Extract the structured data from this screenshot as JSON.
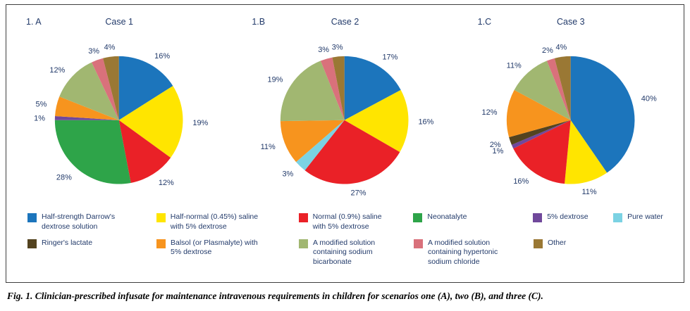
{
  "label_color": "#223A6A",
  "figure": {
    "caption": "Fig. 1. Clinician-prescribed infusate for maintenance intravenous requirements in children for scenarios one (A), two (B), and three (C)."
  },
  "chart_data": [
    {
      "type": "pie",
      "panel_label": "1. A",
      "title": "Case 1",
      "slices": [
        {
          "label": "Half-strength Darrow's dextrose solution",
          "value": 16,
          "color": "#1C75BC"
        },
        {
          "label": "Half-normal (0.45%) saline with 5% dextrose",
          "value": 19,
          "color": "#FFE500"
        },
        {
          "label": "Normal (0.9%) saline with 5% dextrose",
          "value": 12,
          "color": "#EA2127"
        },
        {
          "label": "Neonatalyte",
          "value": 28,
          "color": "#2EA449"
        },
        {
          "label": "5% dextrose",
          "value": 1,
          "color": "#70489B"
        },
        {
          "label": "Balsol (or Plasmalyte) with 5% dextrose",
          "value": 5,
          "color": "#F7941E"
        },
        {
          "label": "A modified solution containing sodium bicarbonate",
          "value": 12,
          "color": "#A1B771"
        },
        {
          "label": "A modified solution containing hypertonic sodium chloride",
          "value": 3,
          "color": "#D9717B"
        },
        {
          "label": "Other",
          "value": 4,
          "color": "#9A7834"
        }
      ]
    },
    {
      "type": "pie",
      "panel_label": "1.B",
      "title": "Case 2",
      "slices": [
        {
          "label": "Half-strength Darrow's dextrose solution",
          "value": 17,
          "color": "#1C75BC"
        },
        {
          "label": "Half-normal (0.45%) saline with 5% dextrose",
          "value": 16,
          "color": "#FFE500"
        },
        {
          "label": "Normal (0.9%) saline with 5% dextrose",
          "value": 27,
          "color": "#EA2127"
        },
        {
          "label": "Pure water",
          "value": 3,
          "color": "#7BD2E3"
        },
        {
          "label": "Balsol (or Plasmalyte) with 5% dextrose",
          "value": 11,
          "color": "#F7941E"
        },
        {
          "label": "A modified solution containing sodium bicarbonate",
          "value": 19,
          "color": "#A1B771"
        },
        {
          "label": "A modified solution containing hypertonic sodium chloride",
          "value": 3,
          "color": "#D9717B"
        },
        {
          "label": "Other",
          "value": 3,
          "color": "#9A7834"
        }
      ]
    },
    {
      "type": "pie",
      "panel_label": "1.C",
      "title": "Case 3",
      "slices": [
        {
          "label": "Half-strength Darrow's dextrose solution",
          "value": 40,
          "color": "#1C75BC"
        },
        {
          "label": "Half-normal (0.45%) saline with 5% dextrose",
          "value": 11,
          "color": "#FFE500"
        },
        {
          "label": "Normal (0.9%) saline with 5% dextrose",
          "value": 16,
          "color": "#EA2127"
        },
        {
          "label": "5% dextrose",
          "value": 1,
          "color": "#70489B"
        },
        {
          "label": "Ringer's lactate",
          "value": 2,
          "color": "#53431F"
        },
        {
          "label": "Balsol (or Plasmalyte) with 5% dextrose",
          "value": 12,
          "color": "#F7941E"
        },
        {
          "label": "A modified solution containing sodium bicarbonate",
          "value": 11,
          "color": "#A1B771"
        },
        {
          "label": "A modified solution containing hypertonic sodium chloride",
          "value": 2,
          "color": "#D9717B"
        },
        {
          "label": "Other",
          "value": 4,
          "color": "#9A7834"
        }
      ]
    }
  ],
  "legend": {
    "rows": [
      [
        {
          "label": "Half-strength Darrow's dextrose solution",
          "color": "#1C75BC"
        },
        {
          "label": "Half-normal (0.45%) saline with 5% dextrose",
          "color": "#FFE500"
        },
        {
          "label": "Normal (0.9%) saline with 5% dextrose",
          "color": "#EA2127"
        },
        {
          "label": "Neonatalyte",
          "color": "#2EA449"
        },
        {
          "label": "5% dextrose",
          "color": "#70489B"
        },
        {
          "label": "Pure water",
          "color": "#7BD2E3"
        }
      ],
      [
        {
          "label": "Ringer's lactate",
          "color": "#53431F"
        },
        {
          "label": "Balsol (or Plasmalyte) with 5% dextrose",
          "color": "#F7941E"
        },
        {
          "label": "A modified solution containing sodium bicarbonate",
          "color": "#A1B771"
        },
        {
          "label": "A modified solution containing hypertonic sodium chloride",
          "color": "#D9717B"
        },
        {
          "label": "Other",
          "color": "#9A7834"
        }
      ]
    ]
  }
}
